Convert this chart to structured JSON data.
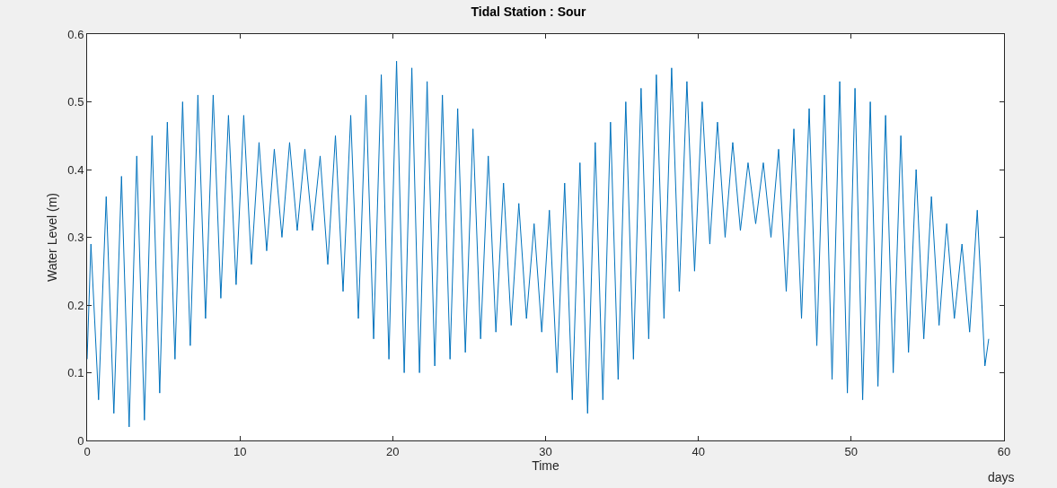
{
  "chart_data": {
    "type": "line",
    "title": "Tidal Station : Sour",
    "xlabel": "Time",
    "ylabel": "Water Level (m)",
    "annotations": [
      "days"
    ],
    "x": [
      0,
      0.25,
      0.75,
      1.25,
      1.75,
      2.25,
      2.75,
      3.25,
      3.75,
      4.25,
      4.75,
      5.25,
      5.75,
      6.25,
      6.75,
      7.25,
      7.75,
      8.25,
      8.75,
      9.25,
      9.75,
      10.25,
      10.75,
      11.25,
      11.75,
      12.25,
      12.75,
      13.25,
      13.75,
      14.25,
      14.75,
      15.25,
      15.75,
      16.25,
      16.75,
      17.25,
      17.75,
      18.25,
      18.75,
      19.25,
      19.75,
      20.25,
      20.75,
      21.25,
      21.75,
      22.25,
      22.75,
      23.25,
      23.75,
      24.25,
      24.75,
      25.25,
      25.75,
      26.25,
      26.75,
      27.25,
      27.75,
      28.25,
      28.75,
      29.25,
      29.75,
      30.25,
      30.75,
      31.25,
      31.75,
      32.25,
      32.75,
      33.25,
      33.75,
      34.25,
      34.75,
      35.25,
      35.75,
      36.25,
      36.75,
      37.25,
      37.75,
      38.25,
      38.75,
      39.25,
      39.75,
      40.25,
      40.75,
      41.25,
      41.75,
      42.25,
      42.75,
      43.25,
      43.75,
      44.25,
      44.75,
      45.25,
      45.75,
      46.25,
      46.75,
      47.25,
      47.75,
      48.25,
      48.75,
      49.25,
      49.75,
      50.25,
      50.75,
      51.25,
      51.75,
      52.25,
      52.75,
      53.25,
      53.75,
      54.25,
      54.75,
      55.25,
      55.75,
      56.25,
      56.75,
      57.25,
      57.75,
      58.25,
      58.75,
      59
    ],
    "series": [
      {
        "color": "#0072bd",
        "values": [
          0.12,
          0.29,
          0.06,
          0.36,
          0.04,
          0.39,
          0.02,
          0.42,
          0.03,
          0.45,
          0.07,
          0.47,
          0.12,
          0.5,
          0.14,
          0.51,
          0.18,
          0.51,
          0.21,
          0.48,
          0.23,
          0.48,
          0.26,
          0.44,
          0.28,
          0.43,
          0.3,
          0.44,
          0.31,
          0.43,
          0.31,
          0.42,
          0.26,
          0.45,
          0.22,
          0.48,
          0.18,
          0.51,
          0.15,
          0.54,
          0.12,
          0.56,
          0.1,
          0.55,
          0.1,
          0.53,
          0.11,
          0.51,
          0.12,
          0.49,
          0.13,
          0.46,
          0.15,
          0.42,
          0.16,
          0.38,
          0.17,
          0.35,
          0.18,
          0.32,
          0.16,
          0.34,
          0.1,
          0.38,
          0.06,
          0.41,
          0.04,
          0.44,
          0.06,
          0.47,
          0.09,
          0.5,
          0.12,
          0.52,
          0.15,
          0.54,
          0.18,
          0.55,
          0.22,
          0.53,
          0.25,
          0.5,
          0.29,
          0.47,
          0.3,
          0.44,
          0.31,
          0.41,
          0.32,
          0.41,
          0.3,
          0.43,
          0.22,
          0.46,
          0.18,
          0.49,
          0.14,
          0.51,
          0.09,
          0.53,
          0.07,
          0.52,
          0.06,
          0.5,
          0.08,
          0.48,
          0.1,
          0.45,
          0.13,
          0.4,
          0.15,
          0.36,
          0.17,
          0.32,
          0.18,
          0.29,
          0.16,
          0.34,
          0.11,
          0.15
        ]
      }
    ],
    "xlim": [
      0,
      60
    ],
    "xticks": [
      0,
      10,
      20,
      30,
      40,
      50,
      60
    ],
    "ylim": [
      0,
      0.6
    ],
    "yticks": [
      0,
      0.1,
      0.2,
      0.3,
      0.4,
      0.5,
      0.6
    ],
    "marker": "none",
    "line_style": "solid"
  }
}
